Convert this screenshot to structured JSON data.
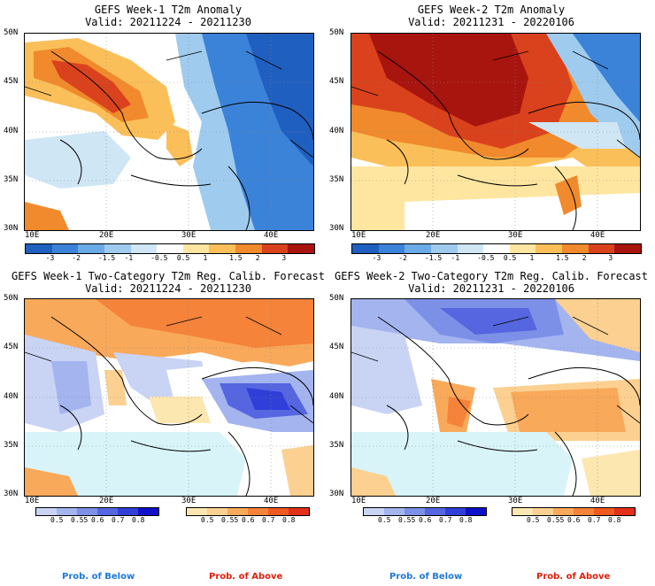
{
  "panels": {
    "tl": {
      "title": "GEFS Week-1 T2m Anomaly",
      "valid": "Valid: 20211224 - 20211230"
    },
    "tr": {
      "title": "GEFS Week-2 T2m Anomaly",
      "valid": "Valid: 20211231 - 20220106"
    },
    "bl": {
      "title": "GEFS Week-1 Two-Category T2m Reg. Calib. Forecast",
      "valid": "Valid: 20211224 - 20211230"
    },
    "br": {
      "title": "GEFS Week-2 Two-Category T2m Reg. Calib. Forecast",
      "valid": "Valid: 20211231 - 20220106"
    }
  },
  "axes": {
    "lat_labels": [
      "50N",
      "45N",
      "40N",
      "35N",
      "30N"
    ],
    "lon_labels": [
      "10E",
      "20E",
      "30E",
      "40E"
    ]
  },
  "anomaly_colorbar": {
    "labels": [
      "-3",
      "-2",
      "-1.5",
      "-1",
      "-0.5",
      "0.5",
      "1",
      "1.5",
      "2",
      "3"
    ],
    "colors": [
      "#1f5fbf",
      "#3b82d9",
      "#6aaae6",
      "#9fcbee",
      "#cfe6f5",
      "#ffffff",
      "#ffe6a0",
      "#fbbf5a",
      "#f08a2c",
      "#d9421c",
      "#a8140e"
    ]
  },
  "prob_colorbars": {
    "below_labels": [
      "0.5",
      "0.55",
      "0.6",
      "0.7",
      "0.8"
    ],
    "below_colors": [
      "#c9d3f4",
      "#a3b4ef",
      "#7d90e8",
      "#5566e0",
      "#2f3fd8",
      "#1010c8"
    ],
    "above_labels": [
      "0.5",
      "0.55",
      "0.6",
      "0.7",
      "0.8"
    ],
    "above_colors": [
      "#fde7b0",
      "#fcd090",
      "#f9a95a",
      "#f5833a",
      "#ef5a20",
      "#e4301a"
    ],
    "below_title": "Prob. of Below",
    "above_title": "Prob. of Above",
    "below_title_color": "#1e78d8",
    "above_title_color": "#e0200c"
  },
  "colors": {
    "sea_prob": "#d8f4f8"
  }
}
